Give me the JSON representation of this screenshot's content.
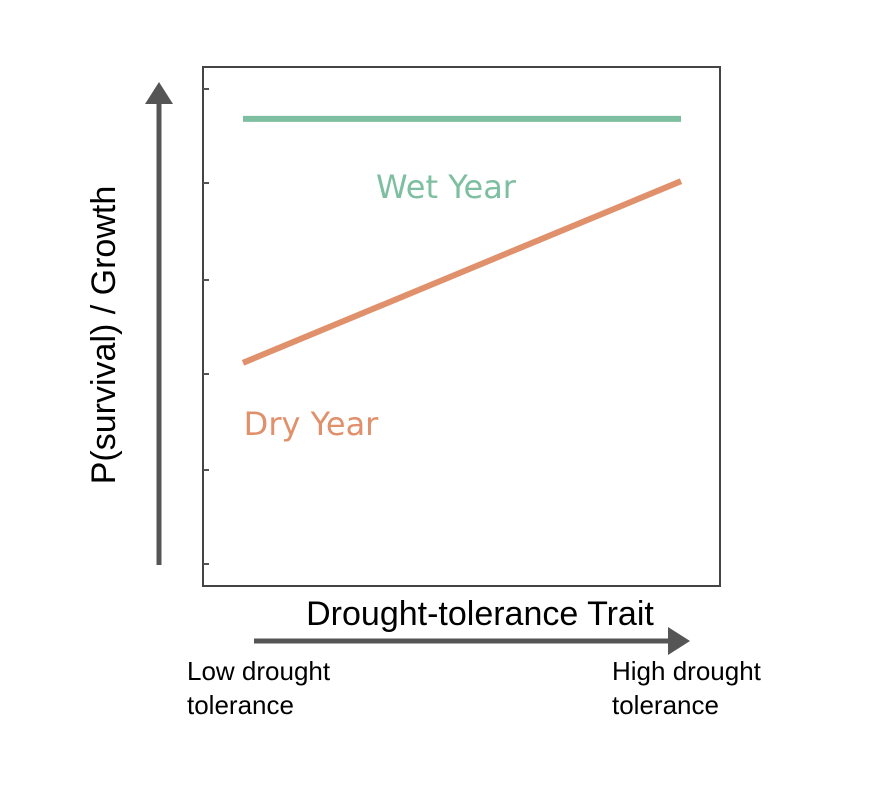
{
  "chart_data": {
    "type": "line",
    "title": "",
    "xlabel": "Drought-tolerance Trait",
    "ylabel": "P(survival) / Growth",
    "x_axis_ends": {
      "low": [
        "Low drought",
        "tolerance"
      ],
      "high": [
        "High drought",
        "tolerance"
      ]
    },
    "xlim": [
      0,
      1
    ],
    "ylim": [
      0,
      1
    ],
    "grid": false,
    "series": [
      {
        "name": "Wet Year",
        "color": "#7dbfa0",
        "x": [
          0,
          1
        ],
        "y": [
          0.9,
          0.9
        ]
      },
      {
        "name": "Dry Year",
        "color": "#e0906a",
        "x": [
          0,
          1
        ],
        "y": [
          0.43,
          0.78
        ]
      }
    ],
    "colors": {
      "frame": "#444444",
      "axis_arrow": "#555555",
      "tick": "#555555"
    }
  }
}
